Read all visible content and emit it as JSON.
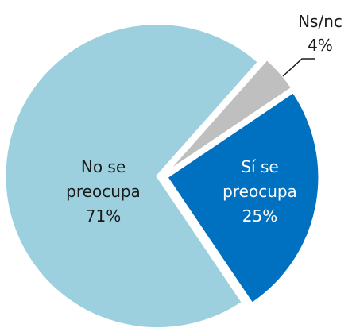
{
  "chart_data": {
    "type": "pie",
    "categories": [
      "Sí se preocupa",
      "No se preocupa",
      "Ns/nc"
    ],
    "values": [
      25,
      71,
      4
    ],
    "value_labels": [
      "25%",
      "71%",
      "4%"
    ],
    "colors": [
      "#0070c0",
      "#9dd0df",
      "#bfbfbf"
    ],
    "start_angle": 56
  }
}
